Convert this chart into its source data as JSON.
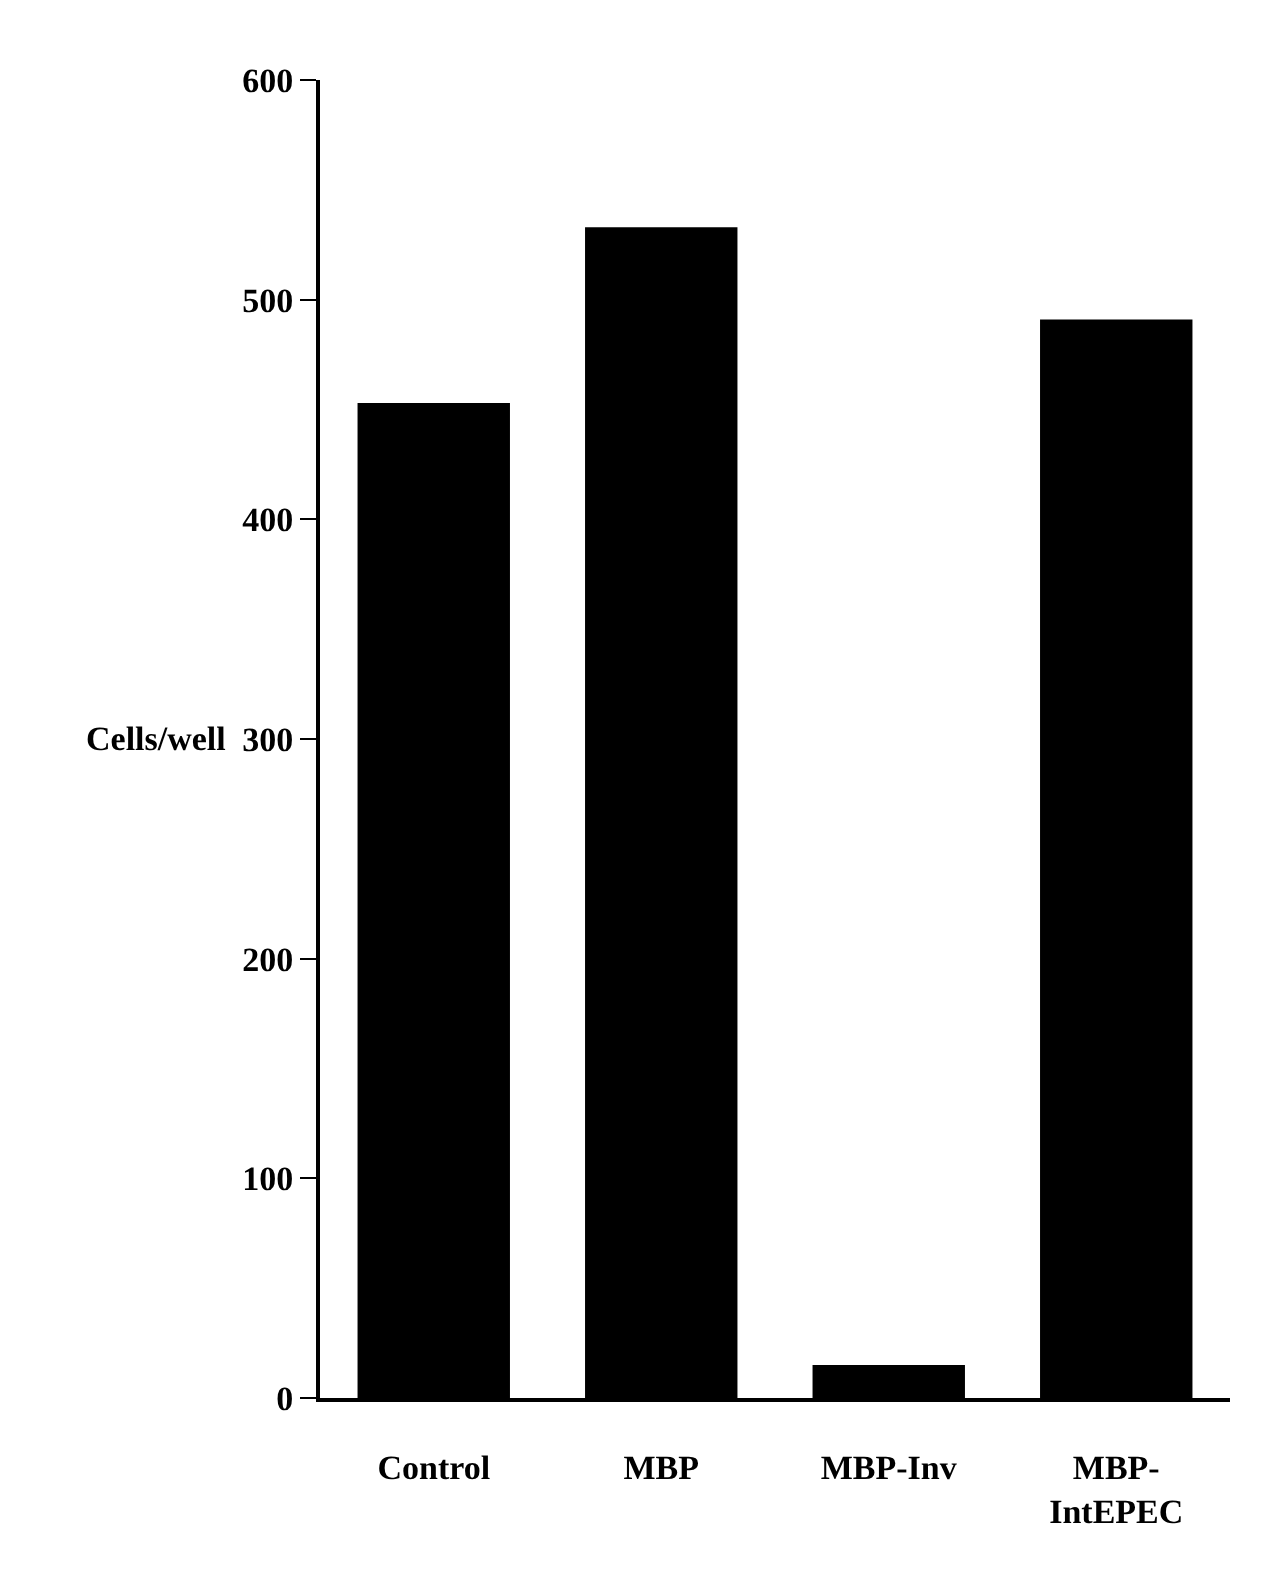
{
  "chart_data": {
    "type": "bar",
    "categories": [
      "Control",
      "MBP",
      "MBP-Inv",
      "MBP-IntEPEC"
    ],
    "values": [
      453,
      533,
      15,
      491
    ],
    "color": "#000000",
    "ylabel": "Cells/well",
    "ylim": [
      0,
      600
    ],
    "yticks": [
      0,
      100,
      200,
      300,
      400,
      500,
      600
    ],
    "grid": false
  }
}
